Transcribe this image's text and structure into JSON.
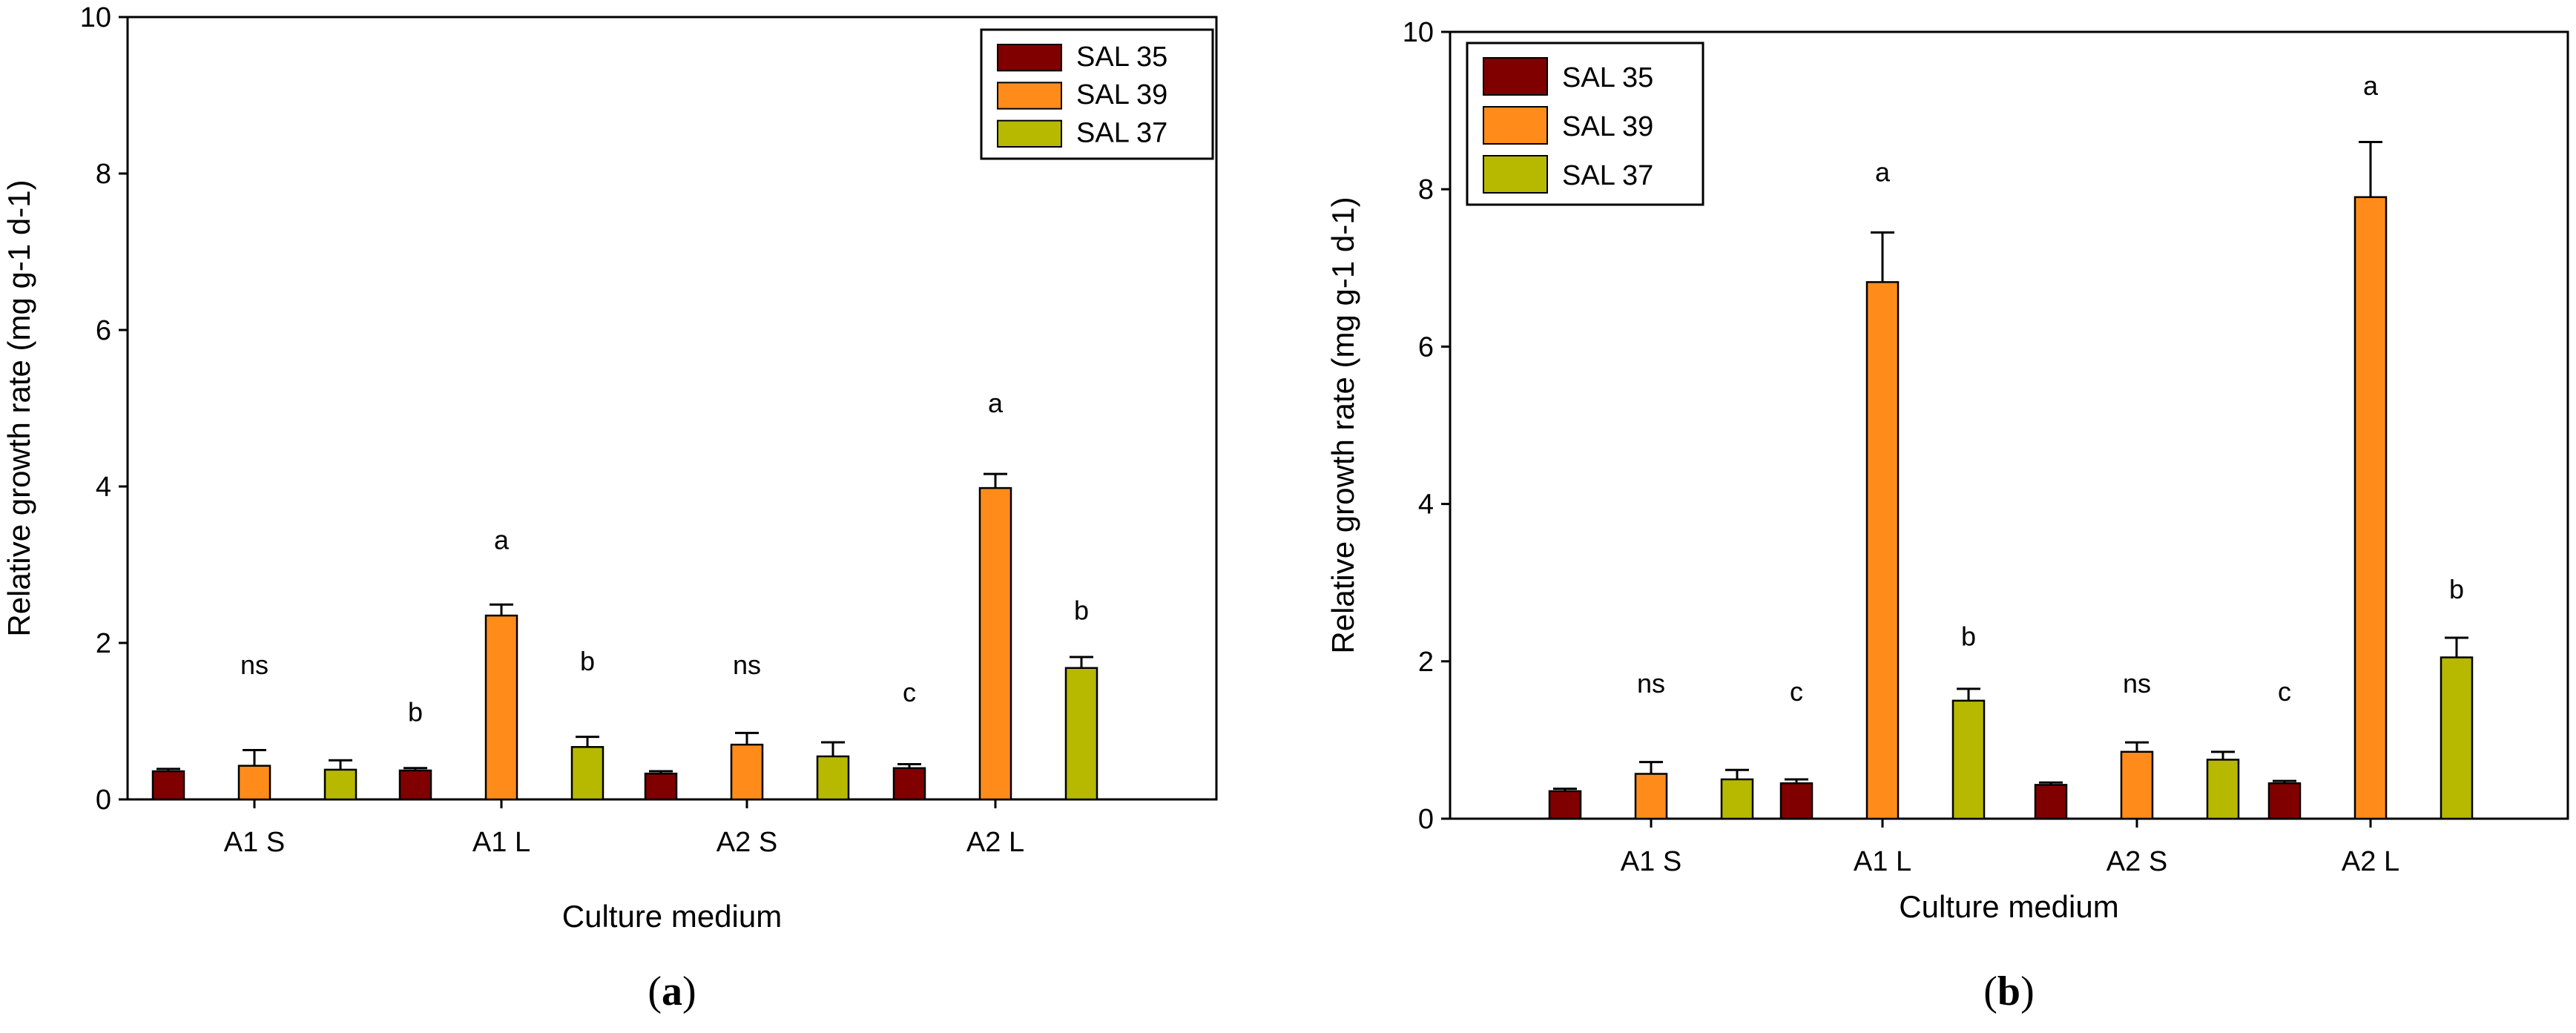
{
  "colors": {
    "SAL 35": "#800000",
    "SAL 39": "#ff8c1a",
    "SAL 37": "#b7b900"
  },
  "chart_data": [
    {
      "type": "bar",
      "panel": "(a)",
      "panel_letter": "a",
      "xlabel": "Culture medium",
      "ylabel": "Relative growth rate (mg g-1 d-1)",
      "ylim": [
        0,
        10
      ],
      "yticks": [
        "0",
        "2",
        "4",
        "6",
        "8",
        "10"
      ],
      "legend_position": "top-right",
      "categories": [
        "A1 S",
        "A1 L",
        "A2 S",
        "A2 L"
      ],
      "series": [
        {
          "name": "SAL 35",
          "values": [
            0.36,
            0.37,
            0.33,
            0.4
          ],
          "errors": [
            0.03,
            0.03,
            0.03,
            0.05
          ]
        },
        {
          "name": "SAL 39",
          "values": [
            0.43,
            2.35,
            0.7,
            3.98
          ],
          "errors": [
            0.2,
            0.14,
            0.15,
            0.18
          ]
        },
        {
          "name": "SAL 37",
          "values": [
            0.38,
            0.67,
            0.55,
            1.68
          ],
          "errors": [
            0.12,
            0.13,
            0.18,
            0.14
          ]
        }
      ],
      "annotations": [
        {
          "category": "A1 S",
          "series": "center",
          "text": "ns",
          "value": 1.6
        },
        {
          "category": "A1 L",
          "series": "SAL 35",
          "text": "b",
          "value": 1.0
        },
        {
          "category": "A1 L",
          "series": "SAL 39",
          "text": "a",
          "value": 3.2
        },
        {
          "category": "A1 L",
          "series": "SAL 37",
          "text": "b",
          "value": 1.65
        },
        {
          "category": "A2 S",
          "series": "center",
          "text": "ns",
          "value": 1.6
        },
        {
          "category": "A2 L",
          "series": "SAL 35",
          "text": "c",
          "value": 1.25
        },
        {
          "category": "A2 L",
          "series": "SAL 39",
          "text": "a",
          "value": 4.95
        },
        {
          "category": "A2 L",
          "series": "SAL 37",
          "text": "b",
          "value": 2.3
        }
      ]
    },
    {
      "type": "bar",
      "panel": "(b)",
      "panel_letter": "b",
      "xlabel": "Culture medium",
      "ylabel": "Relative growth rate (mg g-1 d-1)",
      "ylim": [
        0,
        10
      ],
      "yticks": [
        "0",
        "2",
        "4",
        "6",
        "8",
        "10"
      ],
      "legend_position": "top-left",
      "categories": [
        "A1 S",
        "A1 L",
        "A2 S",
        "A2 L"
      ],
      "series": [
        {
          "name": "SAL 35",
          "values": [
            0.35,
            0.45,
            0.43,
            0.45
          ],
          "errors": [
            0.03,
            0.05,
            0.03,
            0.03
          ]
        },
        {
          "name": "SAL 39",
          "values": [
            0.57,
            6.82,
            0.85,
            7.9
          ],
          "errors": [
            0.15,
            0.63,
            0.12,
            0.7
          ]
        },
        {
          "name": "SAL 37",
          "values": [
            0.5,
            1.5,
            0.75,
            2.05
          ],
          "errors": [
            0.12,
            0.15,
            0.1,
            0.25
          ]
        }
      ],
      "annotations": [
        {
          "category": "A1 S",
          "series": "center",
          "text": "ns",
          "value": 1.6
        },
        {
          "category": "A1 L",
          "series": "SAL 35",
          "text": "c",
          "value": 1.5
        },
        {
          "category": "A1 L",
          "series": "SAL 39",
          "text": "a",
          "value": 8.1
        },
        {
          "category": "A1 L",
          "series": "SAL 37",
          "text": "b",
          "value": 2.2
        },
        {
          "category": "A2 S",
          "series": "center",
          "text": "ns",
          "value": 1.6
        },
        {
          "category": "A2 L",
          "series": "SAL 35",
          "text": "c",
          "value": 1.5
        },
        {
          "category": "A2 L",
          "series": "SAL 39",
          "text": "a",
          "value": 9.2
        },
        {
          "category": "A2 L",
          "series": "SAL 37",
          "text": "b",
          "value": 2.8
        }
      ]
    }
  ]
}
